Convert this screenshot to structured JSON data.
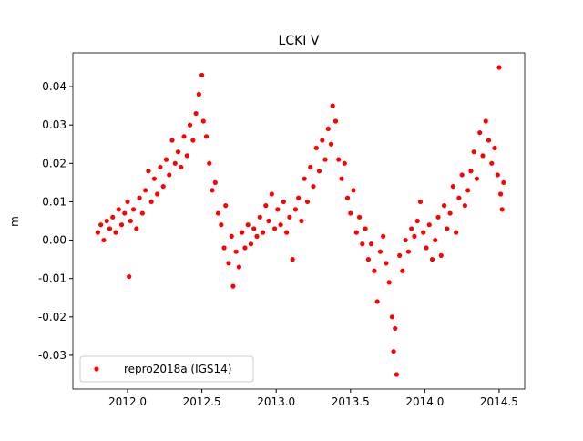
{
  "chart_data": {
    "type": "scatter",
    "title": "LCKI V",
    "ylabel": "m",
    "xlim": [
      2011.632,
      2014.672
    ],
    "ylim": [
      -0.0388,
      0.0488
    ],
    "xticks": [
      {
        "value": 2012,
        "label": "2012.0"
      },
      {
        "value": 2012.5,
        "label": "2012.5"
      },
      {
        "value": 2013,
        "label": "2013.0"
      },
      {
        "value": 2013.5,
        "label": "2013.5"
      },
      {
        "value": 2014,
        "label": "2014.0"
      },
      {
        "value": 2014.5,
        "label": "2014.5"
      }
    ],
    "yticks": [
      -0.03,
      -0.02,
      -0.01,
      {
        "value": 0,
        "label": "0.00"
      },
      0.01,
      0.02,
      0.03,
      0.04
    ],
    "legend": "lower left",
    "series": [
      {
        "name": "repro2018a (IGS14)",
        "color": "#ff0000",
        "x": [
          2011.8,
          2011.82,
          2011.84,
          2011.86,
          2011.88,
          2011.9,
          2011.92,
          2011.94,
          2011.96,
          2011.98,
          2012.0,
          2012.01,
          2012.02,
          2012.04,
          2012.06,
          2012.08,
          2012.1,
          2012.12,
          2012.14,
          2012.16,
          2012.18,
          2012.2,
          2012.22,
          2012.24,
          2012.26,
          2012.28,
          2012.3,
          2012.32,
          2012.34,
          2012.36,
          2012.38,
          2012.4,
          2012.42,
          2012.44,
          2012.46,
          2012.48,
          2012.5,
          2012.51,
          2012.53,
          2012.55,
          2012.57,
          2012.59,
          2012.61,
          2012.63,
          2012.65,
          2012.66,
          2012.68,
          2012.7,
          2012.71,
          2012.73,
          2012.75,
          2012.77,
          2012.79,
          2012.81,
          2012.83,
          2012.85,
          2012.87,
          2012.89,
          2012.91,
          2012.93,
          2012.95,
          2012.97,
          2012.99,
          2013.01,
          2013.03,
          2013.05,
          2013.07,
          2013.09,
          2013.11,
          2013.13,
          2013.15,
          2013.17,
          2013.19,
          2013.21,
          2013.23,
          2013.25,
          2013.27,
          2013.29,
          2013.31,
          2013.33,
          2013.35,
          2013.37,
          2013.38,
          2013.4,
          2013.42,
          2013.44,
          2013.46,
          2013.48,
          2013.5,
          2013.52,
          2013.54,
          2013.56,
          2013.58,
          2013.6,
          2013.62,
          2013.64,
          2013.66,
          2013.68,
          2013.7,
          2013.72,
          2013.74,
          2013.76,
          2013.78,
          2013.79,
          2013.8,
          2013.81,
          2013.83,
          2013.85,
          2013.87,
          2013.89,
          2013.91,
          2013.93,
          2013.95,
          2013.97,
          2013.99,
          2014.01,
          2014.03,
          2014.05,
          2014.07,
          2014.09,
          2014.11,
          2014.13,
          2014.15,
          2014.17,
          2014.19,
          2014.21,
          2014.23,
          2014.25,
          2014.27,
          2014.29,
          2014.31,
          2014.33,
          2014.35,
          2014.37,
          2014.39,
          2014.41,
          2014.43,
          2014.45,
          2014.47,
          2014.49,
          2014.5,
          2014.51,
          2014.52,
          2014.53
        ],
        "values": [
          0.002,
          0.004,
          0.0,
          0.005,
          0.003,
          0.006,
          0.002,
          0.008,
          0.004,
          0.007,
          0.01,
          -0.0095,
          0.005,
          0.008,
          0.003,
          0.011,
          0.007,
          0.013,
          0.018,
          0.01,
          0.016,
          0.012,
          0.019,
          0.014,
          0.021,
          0.017,
          0.026,
          0.02,
          0.023,
          0.019,
          0.027,
          0.022,
          0.03,
          0.026,
          0.033,
          0.038,
          0.043,
          0.031,
          0.027,
          0.02,
          0.013,
          0.015,
          0.007,
          0.004,
          -0.002,
          0.009,
          -0.006,
          0.001,
          -0.012,
          -0.003,
          -0.007,
          0.002,
          -0.002,
          0.004,
          -0.001,
          0.003,
          0.001,
          0.006,
          0.002,
          0.009,
          0.005,
          0.012,
          0.003,
          0.008,
          0.004,
          0.01,
          0.002,
          0.006,
          -0.005,
          0.008,
          0.011,
          0.005,
          0.016,
          0.01,
          0.019,
          0.014,
          0.024,
          0.018,
          0.026,
          0.021,
          0.029,
          0.025,
          0.035,
          0.031,
          0.021,
          0.016,
          0.02,
          0.011,
          0.007,
          0.013,
          0.002,
          0.006,
          -0.001,
          0.003,
          -0.005,
          -0.001,
          -0.008,
          -0.016,
          -0.003,
          0.001,
          -0.006,
          -0.011,
          -0.02,
          -0.029,
          -0.023,
          -0.035,
          -0.004,
          -0.008,
          0.0,
          -0.003,
          0.003,
          0.001,
          0.005,
          0.01,
          0.002,
          -0.002,
          0.004,
          -0.005,
          0.0,
          0.006,
          -0.004,
          0.009,
          0.003,
          0.007,
          0.014,
          0.002,
          0.011,
          0.017,
          0.009,
          0.013,
          0.018,
          0.023,
          0.016,
          0.028,
          0.022,
          0.031,
          0.026,
          0.02,
          0.024,
          0.017,
          0.045,
          0.012,
          0.008,
          0.015
        ]
      }
    ]
  }
}
